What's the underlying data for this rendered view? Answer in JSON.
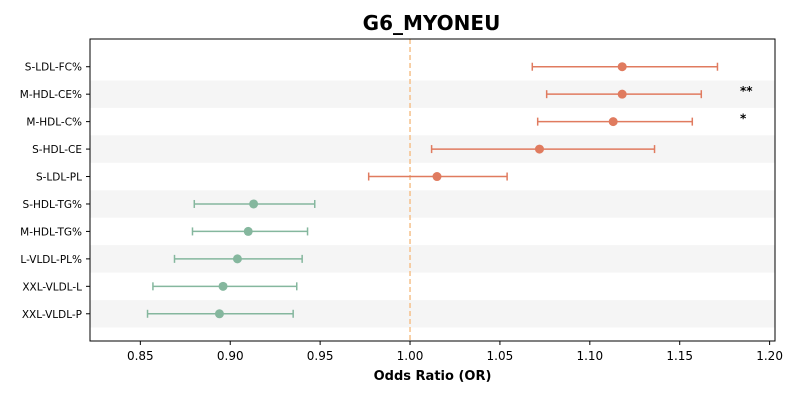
{
  "chart_data": {
    "type": "forest",
    "title": "G6_MYONEU",
    "xlabel": "Odds Ratio (OR)",
    "ylabel": "",
    "xlim": [
      0.822,
      1.203
    ],
    "xticks": [
      0.85,
      0.9,
      0.95,
      1.0,
      1.05,
      1.1,
      1.15,
      1.2
    ],
    "xtick_labels": [
      "0.85",
      "0.90",
      "0.95",
      "1.00",
      "1.05",
      "1.10",
      "1.15",
      "1.20"
    ],
    "reference_line": 1.0,
    "grid": false,
    "row_banding": true,
    "colors": {
      "positive": "#e07b5f",
      "negative": "#85b79e",
      "reference": "#f5c08a",
      "band": "#f5f5f5"
    },
    "rows": [
      {
        "label": "S-LDL-FC%",
        "or": 1.118,
        "lower": 1.068,
        "upper": 1.171,
        "sig": "",
        "direction": "positive"
      },
      {
        "label": "M-HDL-CE%",
        "or": 1.118,
        "lower": 1.076,
        "upper": 1.162,
        "sig": "**",
        "direction": "positive"
      },
      {
        "label": "M-HDL-C%",
        "or": 1.113,
        "lower": 1.071,
        "upper": 1.157,
        "sig": "*",
        "direction": "positive"
      },
      {
        "label": "S-HDL-CE",
        "or": 1.072,
        "lower": 1.012,
        "upper": 1.136,
        "sig": "",
        "direction": "positive"
      },
      {
        "label": "S-LDL-PL",
        "or": 1.015,
        "lower": 0.977,
        "upper": 1.054,
        "sig": "",
        "direction": "positive"
      },
      {
        "label": "S-HDL-TG%",
        "or": 0.913,
        "lower": 0.88,
        "upper": 0.947,
        "sig": "",
        "direction": "negative"
      },
      {
        "label": "M-HDL-TG%",
        "or": 0.91,
        "lower": 0.879,
        "upper": 0.943,
        "sig": "",
        "direction": "negative"
      },
      {
        "label": "L-VLDL-PL%",
        "or": 0.904,
        "lower": 0.869,
        "upper": 0.94,
        "sig": "",
        "direction": "negative"
      },
      {
        "label": "XXL-VLDL-L",
        "or": 0.896,
        "lower": 0.857,
        "upper": 0.937,
        "sig": "",
        "direction": "negative"
      },
      {
        "label": "XXL-VLDL-P",
        "or": 0.894,
        "lower": 0.854,
        "upper": 0.935,
        "sig": "",
        "direction": "negative"
      }
    ]
  }
}
